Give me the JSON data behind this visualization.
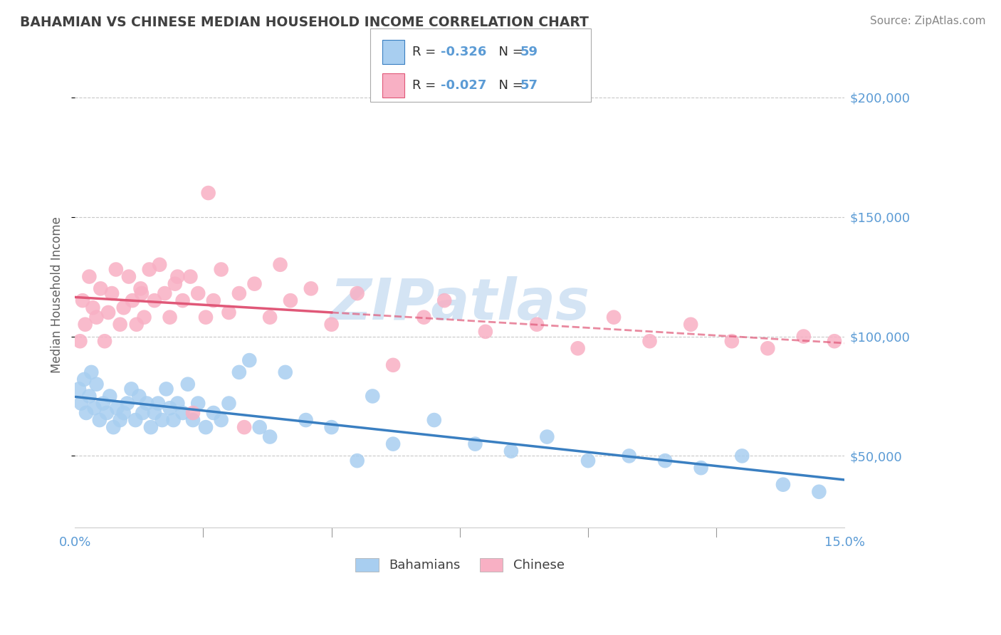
{
  "title": "BAHAMIAN VS CHINESE MEDIAN HOUSEHOLD INCOME CORRELATION CHART",
  "source": "Source: ZipAtlas.com",
  "ylabel": "Median Household Income",
  "xlim": [
    0.0,
    15.0
  ],
  "ylim": [
    20000,
    215000
  ],
  "yticks": [
    50000,
    100000,
    150000,
    200000
  ],
  "ytick_labels": [
    "$50,000",
    "$100,000",
    "$150,000",
    "$200,000"
  ],
  "xticks": [
    0.0,
    2.5,
    5.0,
    7.5,
    10.0,
    12.5,
    15.0
  ],
  "xtick_labels": [
    "0.0%",
    "",
    "",
    "",
    "",
    "",
    "15.0%"
  ],
  "bahamian_color": "#a8cef0",
  "chinese_color": "#f8b0c4",
  "bahamian_line_color": "#3a7fc1",
  "chinese_line_color": "#e05878",
  "axis_color": "#5b9bd5",
  "title_color": "#404040",
  "background_color": "#ffffff",
  "grid_color": "#c8c8c8",
  "watermark_color": "#d4e4f4",
  "bahamian_r": "R = -0.326",
  "bahamian_n": "N = 59",
  "chinese_r": "R = -0.027",
  "chinese_n": "N = 57",
  "bahamian_scatter_x": [
    0.08,
    0.12,
    0.18,
    0.22,
    0.28,
    0.32,
    0.38,
    0.42,
    0.48,
    0.55,
    0.62,
    0.68,
    0.75,
    0.82,
    0.88,
    0.95,
    1.02,
    1.1,
    1.18,
    1.25,
    1.32,
    1.4,
    1.48,
    1.55,
    1.62,
    1.7,
    1.78,
    1.85,
    1.92,
    2.0,
    2.1,
    2.2,
    2.3,
    2.4,
    2.55,
    2.7,
    2.85,
    3.0,
    3.2,
    3.4,
    3.6,
    3.8,
    4.1,
    4.5,
    5.0,
    5.5,
    5.8,
    6.2,
    7.0,
    7.8,
    8.5,
    9.2,
    10.0,
    10.8,
    11.5,
    12.2,
    13.0,
    13.8,
    14.5
  ],
  "bahamian_scatter_y": [
    78000,
    72000,
    82000,
    68000,
    75000,
    85000,
    70000,
    80000,
    65000,
    72000,
    68000,
    75000,
    62000,
    70000,
    65000,
    68000,
    72000,
    78000,
    65000,
    75000,
    68000,
    72000,
    62000,
    68000,
    72000,
    65000,
    78000,
    70000,
    65000,
    72000,
    68000,
    80000,
    65000,
    72000,
    62000,
    68000,
    65000,
    72000,
    85000,
    90000,
    62000,
    58000,
    85000,
    65000,
    62000,
    48000,
    75000,
    55000,
    65000,
    55000,
    52000,
    58000,
    48000,
    50000,
    48000,
    45000,
    50000,
    38000,
    35000
  ],
  "chinese_scatter_x": [
    0.1,
    0.15,
    0.2,
    0.28,
    0.35,
    0.42,
    0.5,
    0.58,
    0.65,
    0.72,
    0.8,
    0.88,
    0.95,
    1.05,
    1.12,
    1.2,
    1.28,
    1.35,
    1.45,
    1.55,
    1.65,
    1.75,
    1.85,
    1.95,
    2.1,
    2.25,
    2.4,
    2.55,
    2.7,
    2.85,
    3.0,
    3.2,
    3.5,
    3.8,
    4.2,
    4.6,
    5.0,
    5.5,
    6.2,
    6.8,
    7.2,
    8.0,
    9.0,
    9.8,
    10.5,
    11.2,
    12.0,
    12.8,
    13.5,
    14.2,
    14.8,
    1.3,
    2.0,
    2.3,
    2.6,
    3.3,
    4.0
  ],
  "chinese_scatter_y": [
    98000,
    115000,
    105000,
    125000,
    112000,
    108000,
    120000,
    98000,
    110000,
    118000,
    128000,
    105000,
    112000,
    125000,
    115000,
    105000,
    120000,
    108000,
    128000,
    115000,
    130000,
    118000,
    108000,
    122000,
    115000,
    125000,
    118000,
    108000,
    115000,
    128000,
    110000,
    118000,
    122000,
    108000,
    115000,
    120000,
    105000,
    118000,
    88000,
    108000,
    115000,
    102000,
    105000,
    95000,
    108000,
    98000,
    105000,
    98000,
    95000,
    100000,
    98000,
    118000,
    125000,
    68000,
    160000,
    62000,
    130000
  ]
}
